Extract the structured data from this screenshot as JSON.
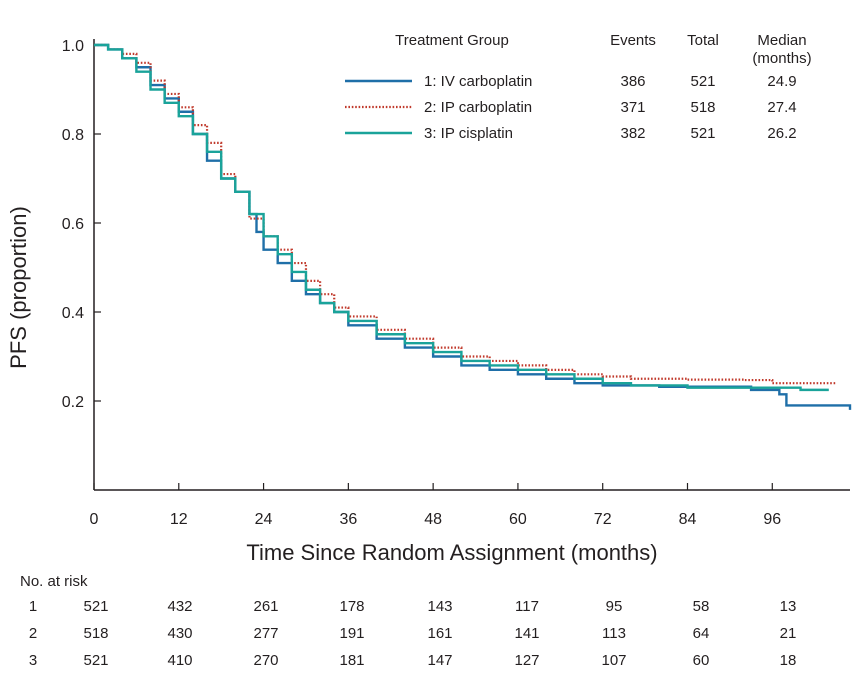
{
  "chart_data": {
    "type": "line",
    "xlabel": "Time Since Random Assignment (months)",
    "ylabel": "PFS (proportion)",
    "xlim": [
      0,
      107
    ],
    "ylim": [
      0,
      1.0
    ],
    "x_ticks": [
      0,
      12,
      24,
      36,
      48,
      60,
      72,
      84,
      96
    ],
    "y_ticks": [
      0.2,
      0.4,
      0.6,
      0.8,
      1.0
    ],
    "y_tick_labels": [
      "0.2",
      "0.4",
      "0.6",
      "0.8",
      "1.0"
    ],
    "legend": {
      "title": "Treatment Group",
      "columns": [
        "Events",
        "Total",
        "Median"
      ],
      "median_unit": "(months)",
      "placement": "top-right"
    },
    "series": [
      {
        "name": "1: IV carboplatin",
        "events": "386",
        "total": "521",
        "median": "24.9",
        "color": "#1f6fa8",
        "style": "solid",
        "x": [
          0,
          2,
          4,
          6,
          8,
          10,
          12,
          14,
          16,
          18,
          20,
          22,
          23,
          24,
          26,
          28,
          30,
          32,
          34,
          36,
          40,
          44,
          48,
          52,
          56,
          60,
          64,
          68,
          72,
          76,
          80,
          84,
          88,
          92,
          93,
          96,
          97,
          98,
          107
        ],
        "y": [
          1.0,
          0.99,
          0.97,
          0.95,
          0.91,
          0.88,
          0.85,
          0.8,
          0.74,
          0.7,
          0.67,
          0.62,
          0.58,
          0.54,
          0.51,
          0.47,
          0.44,
          0.42,
          0.4,
          0.37,
          0.34,
          0.32,
          0.3,
          0.28,
          0.27,
          0.26,
          0.25,
          0.24,
          0.235,
          0.235,
          0.232,
          0.232,
          0.232,
          0.232,
          0.225,
          0.225,
          0.215,
          0.19,
          0.18
        ]
      },
      {
        "name": "2: IP carboplatin",
        "events": "371",
        "total": "518",
        "median": "27.4",
        "color": "#c0392b",
        "style": "dotted",
        "x": [
          0,
          2,
          4,
          6,
          8,
          10,
          12,
          14,
          16,
          18,
          20,
          22,
          24,
          26,
          28,
          30,
          32,
          34,
          36,
          40,
          44,
          48,
          52,
          56,
          60,
          64,
          68,
          72,
          76,
          80,
          84,
          88,
          92,
          96,
          100,
          105
        ],
        "y": [
          1.0,
          0.99,
          0.98,
          0.96,
          0.92,
          0.89,
          0.86,
          0.82,
          0.78,
          0.71,
          0.67,
          0.61,
          0.57,
          0.54,
          0.51,
          0.47,
          0.44,
          0.41,
          0.39,
          0.36,
          0.34,
          0.32,
          0.3,
          0.29,
          0.28,
          0.27,
          0.26,
          0.255,
          0.25,
          0.25,
          0.248,
          0.248,
          0.247,
          0.24,
          0.24,
          0.24
        ]
      },
      {
        "name": "3: IP cisplatin",
        "events": "382",
        "total": "521",
        "median": "26.2",
        "color": "#1aa39a",
        "style": "solid",
        "x": [
          0,
          2,
          4,
          6,
          8,
          10,
          12,
          14,
          16,
          18,
          20,
          22,
          24,
          26,
          28,
          30,
          32,
          34,
          36,
          40,
          44,
          48,
          52,
          56,
          60,
          64,
          68,
          72,
          76,
          80,
          84,
          88,
          92,
          96,
          100,
          104
        ],
        "y": [
          1.0,
          0.99,
          0.97,
          0.94,
          0.9,
          0.87,
          0.84,
          0.8,
          0.76,
          0.7,
          0.67,
          0.62,
          0.57,
          0.53,
          0.49,
          0.45,
          0.42,
          0.4,
          0.38,
          0.35,
          0.33,
          0.31,
          0.29,
          0.28,
          0.27,
          0.26,
          0.25,
          0.24,
          0.235,
          0.235,
          0.23,
          0.23,
          0.23,
          0.23,
          0.225,
          0.225
        ]
      }
    ],
    "at_risk": {
      "title": "No. at risk",
      "rows": [
        {
          "label": "1",
          "values": [
            "521",
            "432",
            "261",
            "178",
            "143",
            "117",
            "95",
            "58",
            "13"
          ]
        },
        {
          "label": "2",
          "values": [
            "518",
            "430",
            "277",
            "191",
            "161",
            "141",
            "113",
            "64",
            "21"
          ]
        },
        {
          "label": "3",
          "values": [
            "521",
            "410",
            "270",
            "181",
            "147",
            "127",
            "107",
            "60",
            "18"
          ]
        }
      ]
    }
  }
}
